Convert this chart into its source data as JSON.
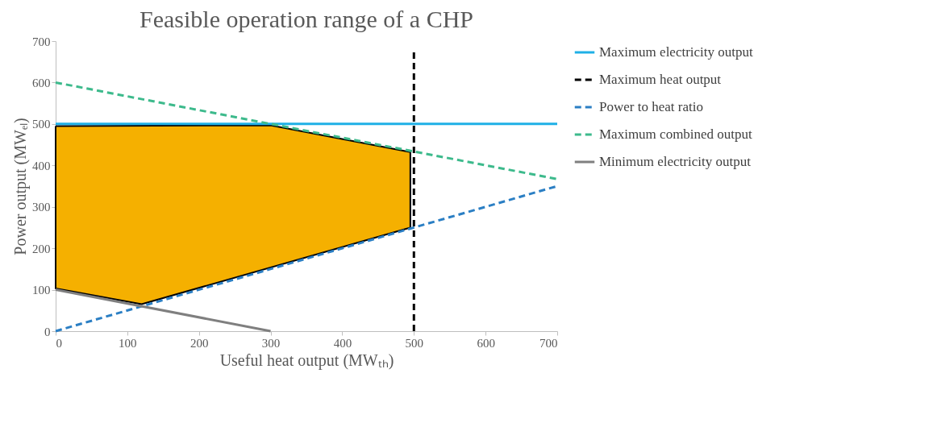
{
  "chart_data": {
    "type": "line",
    "title": "Feasible operation range of a CHP",
    "xlabel": "Useful heat output (MWₜₕ)",
    "ylabel": "Power output (MWₑₗ)",
    "xlim": [
      0,
      700
    ],
    "xticks": [
      0,
      100,
      200,
      300,
      400,
      500,
      600,
      700
    ],
    "ylim": [
      0,
      700
    ],
    "yticks": [
      0,
      100,
      200,
      300,
      400,
      500,
      600,
      700
    ],
    "grid": false,
    "legend": "right",
    "marker": "none",
    "series": [
      {
        "type": "area",
        "color": "#f5b000",
        "x": [
          0,
          300,
          495,
          495,
          120,
          0,
          0
        ],
        "values": [
          495,
          497,
          432,
          250,
          65,
          103,
          495
        ]
      },
      {
        "name": "Maximum electricity output",
        "color": "#1fb0e6",
        "line_style": "solid",
        "x": [
          0,
          700
        ],
        "values": [
          500,
          500
        ]
      },
      {
        "name": "Maximum heat output",
        "color": "#000000",
        "line_style": "dashed",
        "x": [
          500,
          500
        ],
        "values": [
          0,
          678
        ]
      },
      {
        "name": "Power to heat ratio",
        "color": "#2b7fc4",
        "line_style": "dashed",
        "x": [
          0,
          700
        ],
        "values": [
          0,
          350
        ]
      },
      {
        "name": "Maximum combined output",
        "color": "#3dba8c",
        "line_style": "dashed",
        "x": [
          0,
          700
        ],
        "values": [
          600,
          367
        ]
      },
      {
        "name": "Minimum electricity output",
        "color": "#7f7f7f",
        "line_style": "solid",
        "x": [
          0,
          300
        ],
        "values": [
          100,
          0
        ]
      }
    ]
  }
}
